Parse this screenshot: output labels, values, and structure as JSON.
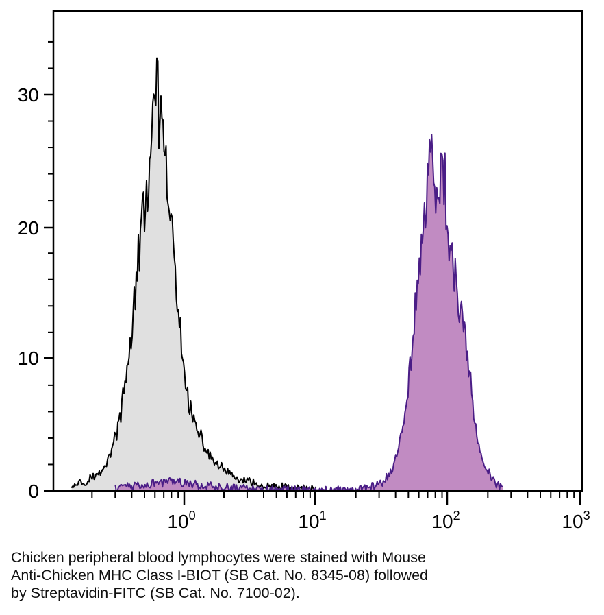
{
  "chart_data": {
    "type": "area",
    "title": "",
    "xlabel": "",
    "ylabel": "",
    "x_scale": "log",
    "xlim": [
      0.1,
      1000
    ],
    "ylim": [
      0,
      35
    ],
    "grid": false,
    "legend": "none",
    "x_ticks": [
      {
        "base": "10",
        "exp": "0",
        "value": 1
      },
      {
        "base": "10",
        "exp": "1",
        "value": 10
      },
      {
        "base": "10",
        "exp": "2",
        "value": 100
      },
      {
        "base": "10",
        "exp": "3",
        "value": 1000
      }
    ],
    "y_ticks": [
      {
        "label": "0",
        "value": 0
      },
      {
        "label": "10",
        "value": 10
      },
      {
        "label": "20",
        "value": 20
      },
      {
        "label": "30",
        "value": 30
      }
    ],
    "series": [
      {
        "fill_color": "#e0e0e0",
        "line_color": "#000000",
        "x": [
          0.14,
          0.18,
          0.22,
          0.26,
          0.3,
          0.34,
          0.38,
          0.42,
          0.46,
          0.5,
          0.54,
          0.58,
          0.62,
          0.66,
          0.7,
          0.75,
          0.8,
          0.85,
          0.9,
          0.95,
          1.0,
          1.1,
          1.2,
          1.4,
          1.6,
          1.8,
          2.0,
          2.5,
          3.0,
          4.0,
          5.0,
          7.0,
          10.0
        ],
        "values": [
          0.5,
          0.8,
          1.2,
          2.2,
          4.0,
          6.5,
          10.0,
          14.5,
          18.5,
          21.5,
          24.0,
          26.5,
          31.0,
          27.5,
          25.0,
          23.0,
          20.0,
          16.5,
          13.5,
          11.0,
          9.0,
          6.5,
          5.0,
          3.5,
          2.5,
          2.0,
          1.5,
          1.0,
          0.7,
          0.4,
          0.3,
          0.2,
          0.1
        ]
      },
      {
        "fill_color": "#c18bc2",
        "line_color": "#4a1d86",
        "x": [
          0.3,
          0.5,
          0.8,
          1.0,
          1.5,
          2.0,
          3.0,
          5.0,
          10.0,
          20.0,
          30.0,
          36.0,
          40.0,
          44.0,
          48.0,
          52.0,
          56.0,
          60.0,
          64.0,
          68.0,
          72.0,
          76.0,
          80.0,
          85.0,
          90.0,
          95.0,
          100.0,
          110.0,
          120.0,
          130.0,
          140.0,
          150.0,
          160.0,
          180.0,
          200.0,
          230.0,
          260.0
        ],
        "values": [
          0.2,
          0.4,
          0.8,
          0.6,
          0.4,
          0.3,
          0.2,
          0.1,
          0.05,
          0.1,
          0.5,
          1.2,
          2.5,
          4.0,
          6.0,
          10.0,
          14.0,
          17.0,
          20.0,
          22.0,
          24.5,
          25.5,
          23.5,
          22.0,
          25.0,
          23.0,
          19.0,
          17.0,
          14.0,
          12.5,
          10.0,
          8.0,
          5.0,
          2.5,
          1.5,
          0.6,
          0.2
        ]
      }
    ]
  },
  "caption": {
    "lines": [
      "Chicken peripheral blood lymphocytes were stained with Mouse",
      "Anti-Chicken MHC Class I-BIOT (SB Cat. No. 8345-08) followed",
      "by Streptavidin-FITC (SB Cat. No. 7100-02)."
    ]
  }
}
